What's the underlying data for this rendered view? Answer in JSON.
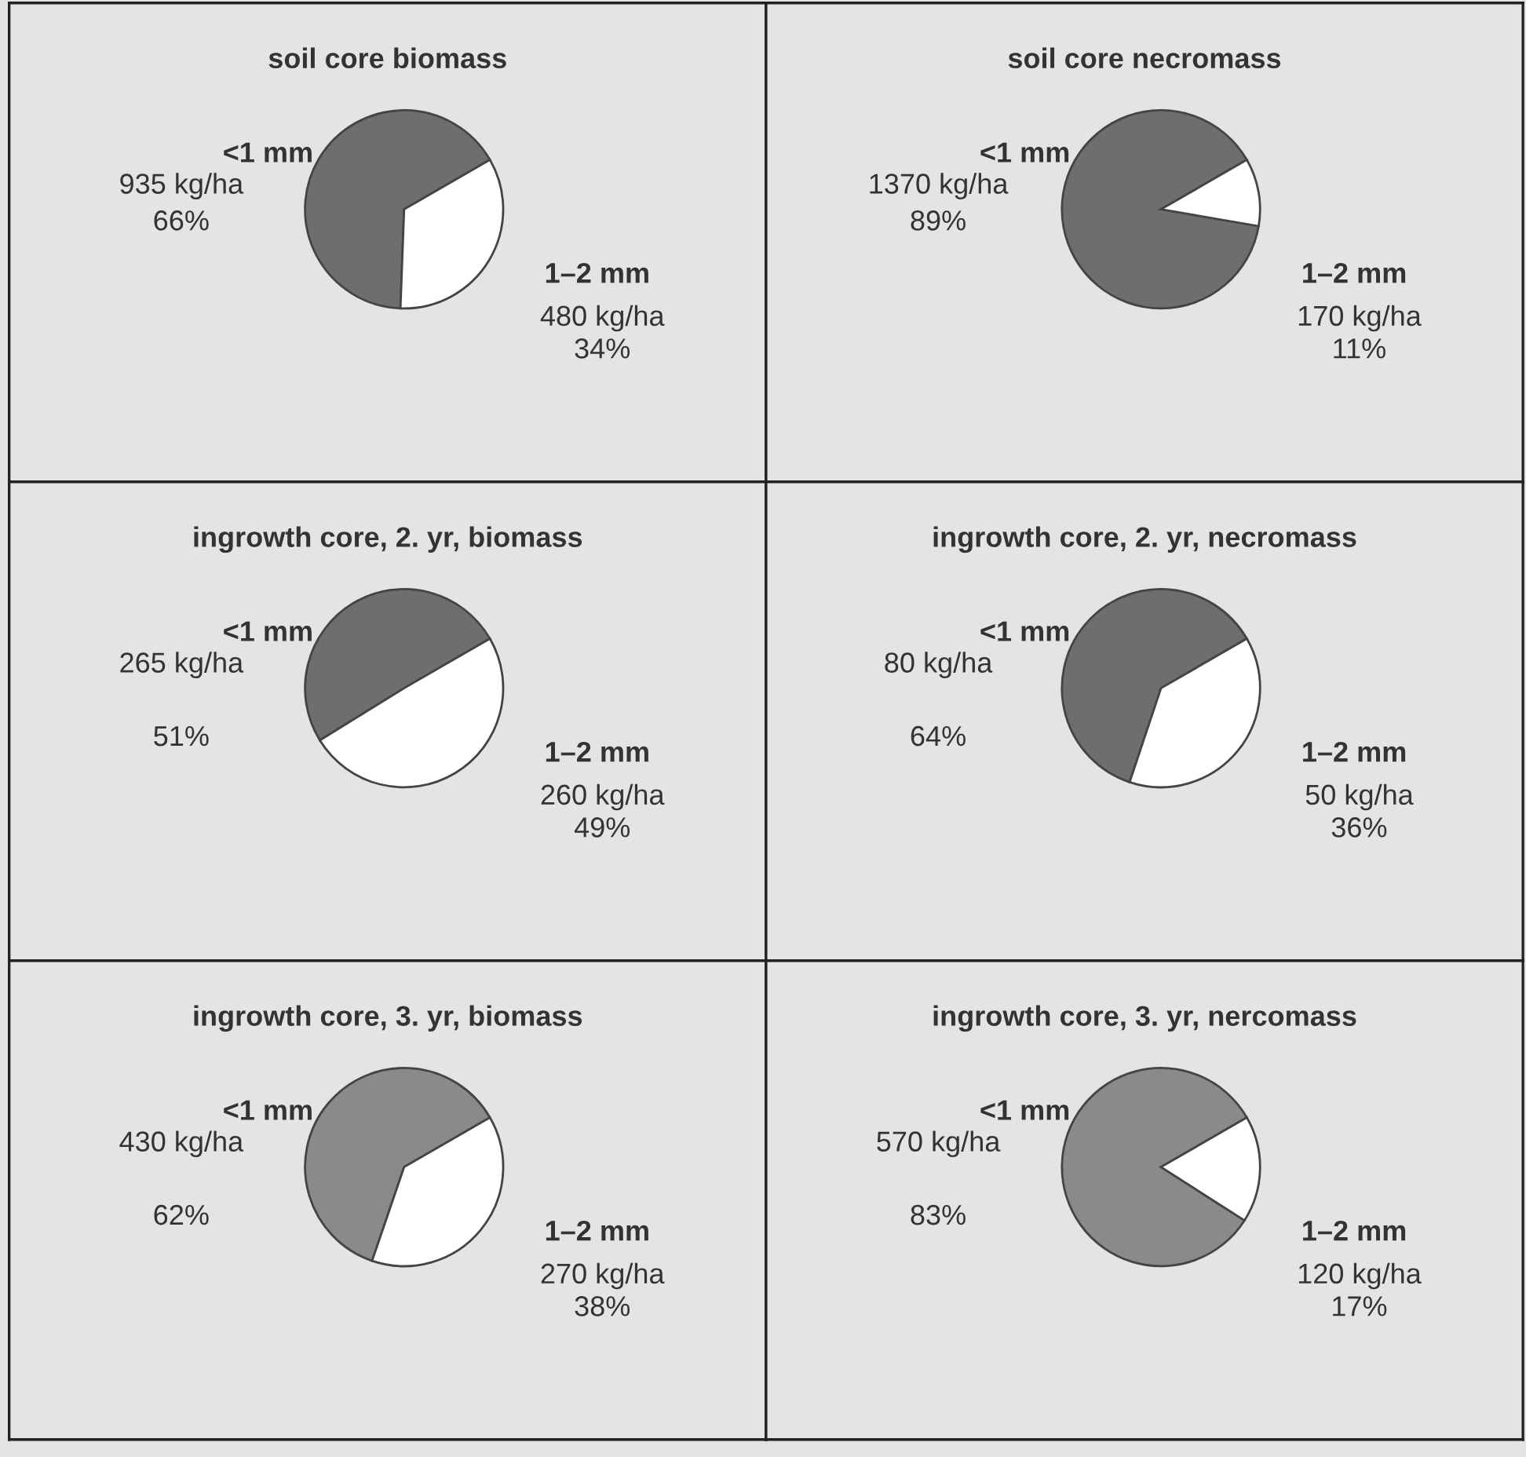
{
  "chart_data": [
    {
      "type": "pie",
      "title": "soil core biomass",
      "categories": [
        "<1 mm",
        "1–2 mm"
      ],
      "values": [
        935,
        480
      ],
      "value_labels": [
        "935 kg/ha\n66%",
        "480 kg/ha\n34%"
      ],
      "colors": [
        "#6e6e6e",
        "#ffffff"
      ]
    },
    {
      "type": "pie",
      "title": "soil core necromass",
      "categories": [
        "<1 mm",
        "1–2 mm"
      ],
      "values": [
        1370,
        170
      ],
      "value_labels": [
        "1370 kg/ha\n89%",
        "170 kg/ha\n11%"
      ],
      "colors": [
        "#6e6e6e",
        "#ffffff"
      ]
    },
    {
      "type": "pie",
      "title": "ingrowth core, 2. yr, biomass",
      "categories": [
        "<1 mm",
        "1–2 mm"
      ],
      "values": [
        265,
        260
      ],
      "value_labels": [
        "265 kg/ha\n\n51%",
        "260 kg/ha\n49%"
      ],
      "colors": [
        "#6e6e6e",
        "#ffffff"
      ]
    },
    {
      "type": "pie",
      "title": "ingrowth core, 2. yr, necromass",
      "categories": [
        "<1 mm",
        "1–2 mm"
      ],
      "values": [
        80,
        50
      ],
      "value_labels": [
        "80 kg/ha\n\n64%",
        "50 kg/ha\n36%"
      ],
      "colors": [
        "#6e6e6e",
        "#ffffff"
      ]
    },
    {
      "type": "pie",
      "title": "ingrowth core, 3. yr, biomass",
      "categories": [
        "<1 mm",
        "1–2 mm"
      ],
      "values": [
        430,
        270
      ],
      "value_labels": [
        "430 kg/ha\n\n62%",
        "270 kg/ha\n38%"
      ],
      "colors": [
        "#8a8a8a",
        "#ffffff"
      ]
    },
    {
      "type": "pie",
      "title": "ingrowth core, 3. yr, nercomass",
      "categories": [
        "<1 mm",
        "1–2 mm"
      ],
      "values": [
        570,
        120
      ],
      "value_labels": [
        "570 kg/ha\n\n83%",
        "120 kg/ha\n17%"
      ],
      "colors": [
        "#8a8a8a",
        "#ffffff"
      ]
    }
  ]
}
